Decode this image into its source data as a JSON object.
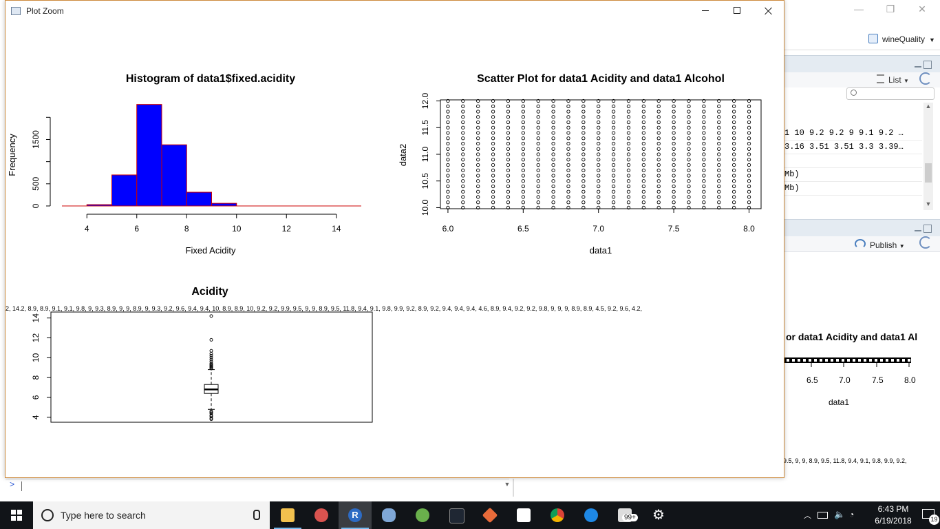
{
  "rstudio": {
    "project_name": "wineQuality",
    "window_controls": {
      "minimize": "—",
      "restore": "❐",
      "close": "✕"
    },
    "environment": {
      "list_view_label": "List",
      "search_placeholder": "",
      "rows": [
        "1 10 9.2 9.2 9 9.1 9.2 …",
        "3.16 3.51 3.51 3.3 3.39…",
        "",
        "Mb)",
        "Mb)"
      ]
    },
    "plots": {
      "publish_label": "Publish",
      "preview_title": "or data1 Acidity and  data1 Al",
      "preview_ticks": [
        "6.5",
        "7.0",
        "7.5",
        "8.0"
      ],
      "preview_xlabel": "data1",
      "preview_stray_text": "9.5, 9, 9, 8.9, 9.5, 11.8, 9.4, 9.1, 9.8, 9.9, 9.2,"
    },
    "console": {
      "prompt": ">"
    }
  },
  "zoom_window": {
    "title": "Plot Zoom",
    "controls": {
      "minimize": "minimize",
      "maximize": "maximize",
      "close": "close"
    }
  },
  "stray_label_row": "2, 14.2, 8.9, 8.9, 9.1, 9.1, 9.8, 9, 9.3, 8.9, 9, 9, 8.9, 9, 9.3, 9.2, 9.6, 9.4, 9.4, 10, 8.9, 8.9, 10, 9.2, 9.2, 9.9, 9.5, 9, 9, 8.9, 9.5, 11.8, 9.4, 9.1, 9.8, 9.9, 9.2, 8.9, 9.2, 9.4, 9.4, 9.4, 4.6, 8.9, 9.4, 9.2, 9.2, 9.8, 9, 9, 9, 8.9, 8.9, 4.5, 9.2, 9.6, 4.2,",
  "chart_data": [
    {
      "type": "bar",
      "subtype": "histogram",
      "title": "Histogram of data1$fixed.acidity",
      "xlabel": "Fixed Acidity",
      "ylabel": "Frequency",
      "bins": [
        [
          4,
          5
        ],
        [
          5,
          6
        ],
        [
          6,
          7
        ],
        [
          7,
          8
        ],
        [
          8,
          9
        ],
        [
          9,
          10
        ]
      ],
      "values": [
        30,
        700,
        2290,
        1380,
        310,
        60
      ],
      "x_ticks": [
        "4",
        "6",
        "8",
        "10",
        "12",
        "14"
      ],
      "y_ticks": [
        "0",
        "500",
        "1500"
      ],
      "xlim": [
        3,
        15
      ],
      "ylim": [
        0,
        2300
      ],
      "fill": "#0000ff",
      "border": "#cc0000",
      "grid": false
    },
    {
      "type": "scatter",
      "title": "Scatter Plot for data1 Acidity and  data1 Alcohol",
      "xlabel": "data1",
      "ylabel": "data2",
      "x_ticks": [
        "6.0",
        "6.5",
        "7.0",
        "7.5",
        "8.0"
      ],
      "y_ticks": [
        "10.0",
        "10.5",
        "11.0",
        "11.5",
        "12.0"
      ],
      "xlim": [
        5.95,
        8.08
      ],
      "ylim": [
        9.98,
        12.02
      ],
      "x_values": [
        6.0,
        6.1,
        6.2,
        6.3,
        6.4,
        6.5,
        6.6,
        6.7,
        6.8,
        6.9,
        7.0,
        7.1,
        7.2,
        7.3,
        7.4,
        7.5,
        7.6,
        7.7,
        7.8,
        7.9,
        8.0
      ],
      "y_values": [
        10.0,
        10.1,
        10.2,
        10.3,
        10.4,
        10.5,
        10.6,
        10.7,
        10.8,
        10.9,
        11.0,
        11.1,
        11.2,
        11.3,
        11.4,
        11.5,
        11.6,
        11.7,
        11.8,
        11.9,
        12.0
      ],
      "marker": "open-circle",
      "grid": false
    },
    {
      "type": "boxplot",
      "title": "Acidity",
      "y_ticks": [
        "4",
        "6",
        "8",
        "10",
        "12",
        "14"
      ],
      "ylim": [
        3.5,
        14.6
      ],
      "whisker_low": 4.8,
      "q1": 6.4,
      "median": 6.8,
      "q3": 7.3,
      "whisker_high": 8.8,
      "outliers": [
        3.8,
        3.9,
        4.1,
        4.2,
        4.4,
        4.5,
        4.6,
        8.9,
        9.0,
        9.1,
        9.2,
        9.3,
        9.4,
        9.6,
        9.8,
        10.0,
        10.2,
        10.4,
        10.7,
        11.8,
        14.2
      ],
      "grid": false
    }
  ],
  "taskbar": {
    "search_placeholder": "Type here to search",
    "apps": [
      "file-explorer",
      "paint-app",
      "r-app",
      "dolphin-app",
      "android-studio",
      "terminal-app",
      "git-app",
      "calculator-app",
      "chrome-app",
      "edge-app",
      "mail-app",
      "settings-app"
    ],
    "mail_badge": "99+",
    "clock_time": "6:43 PM",
    "clock_date": "6/19/2018",
    "notification_count": "19"
  }
}
